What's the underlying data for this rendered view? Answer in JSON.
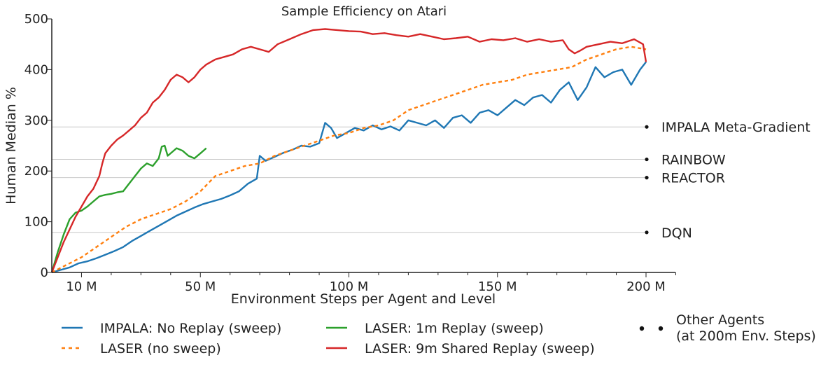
{
  "chart_data": {
    "type": "line",
    "title": "Sample Efficiency on Atari",
    "xlabel": "Environment Steps per Agent and Level",
    "ylabel": "Human Median %",
    "xlim": [
      0,
      213
    ],
    "ylim": [
      0,
      500
    ],
    "x_ticks": [
      10,
      50,
      100,
      150,
      200
    ],
    "x_tick_labels": [
      "10 M",
      "50 M",
      "100 M",
      "150 M",
      "200 M"
    ],
    "y_ticks": [
      0,
      100,
      200,
      300,
      400,
      500
    ],
    "y_tick_labels": [
      "0",
      "100",
      "200",
      "300",
      "400",
      "500"
    ],
    "reference_lines": [
      {
        "label": "IMPALA Meta-Gradient",
        "value": 287
      },
      {
        "label": "RAINBOW",
        "value": 223
      },
      {
        "label": "REACTOR",
        "value": 187
      },
      {
        "label": "DQN",
        "value": 79
      }
    ],
    "series": [
      {
        "name": "IMPALA: No Replay (sweep)",
        "color": "#1f77b4",
        "style": "solid",
        "x": [
          0,
          3,
          6,
          9,
          12,
          15,
          18,
          21,
          24,
          27,
          30,
          33,
          36,
          39,
          42,
          45,
          48,
          51,
          54,
          57,
          60,
          63,
          66,
          69,
          70,
          72,
          75,
          78,
          81,
          84,
          87,
          90,
          92,
          94,
          96,
          99,
          102,
          105,
          108,
          111,
          114,
          117,
          120,
          123,
          126,
          129,
          132,
          135,
          138,
          141,
          144,
          147,
          150,
          153,
          156,
          159,
          162,
          165,
          168,
          171,
          174,
          177,
          180,
          183,
          186,
          189,
          192,
          195,
          198,
          200
        ],
        "values": [
          0,
          5,
          10,
          18,
          22,
          28,
          35,
          42,
          50,
          62,
          72,
          82,
          92,
          102,
          112,
          120,
          128,
          135,
          140,
          145,
          152,
          160,
          175,
          185,
          230,
          220,
          228,
          236,
          242,
          250,
          248,
          255,
          295,
          285,
          265,
          275,
          285,
          280,
          290,
          282,
          288,
          280,
          300,
          295,
          290,
          300,
          285,
          305,
          310,
          295,
          315,
          320,
          310,
          325,
          340,
          330,
          345,
          350,
          335,
          360,
          375,
          340,
          365,
          405,
          385,
          395,
          400,
          370,
          400,
          415
        ]
      },
      {
        "name": "LASER (no sweep)",
        "color": "#ff7f0e",
        "style": "dotted",
        "x": [
          0,
          5,
          10,
          15,
          20,
          25,
          30,
          35,
          40,
          45,
          50,
          55,
          60,
          65,
          70,
          75,
          80,
          85,
          90,
          95,
          100,
          105,
          110,
          115,
          120,
          125,
          130,
          135,
          140,
          145,
          150,
          155,
          160,
          165,
          170,
          175,
          180,
          185,
          190,
          195,
          200
        ],
        "values": [
          0,
          15,
          30,
          50,
          70,
          90,
          105,
          115,
          125,
          140,
          160,
          190,
          200,
          210,
          215,
          230,
          240,
          250,
          260,
          270,
          275,
          285,
          290,
          300,
          320,
          330,
          340,
          350,
          360,
          370,
          375,
          380,
          390,
          395,
          400,
          405,
          420,
          430,
          440,
          445,
          440
        ]
      },
      {
        "name": "LASER: 1m Replay (sweep)",
        "color": "#2ca02c",
        "style": "solid",
        "x": [
          0,
          2,
          4,
          6,
          8,
          10,
          12,
          14,
          16,
          18,
          20,
          22,
          24,
          26,
          28,
          30,
          32,
          34,
          36,
          37,
          38,
          39,
          40,
          42,
          44,
          46,
          48,
          50,
          52
        ],
        "values": [
          0,
          40,
          75,
          105,
          118,
          122,
          130,
          140,
          150,
          153,
          155,
          158,
          160,
          175,
          190,
          205,
          215,
          210,
          225,
          248,
          250,
          230,
          235,
          245,
          240,
          230,
          225,
          235,
          245
        ]
      },
      {
        "name": "LASER: 9m Shared Replay (sweep)",
        "color": "#d62728",
        "style": "solid",
        "x": [
          0,
          2,
          4,
          6,
          8,
          10,
          12,
          14,
          16,
          17,
          18,
          20,
          22,
          24,
          26,
          28,
          30,
          32,
          34,
          36,
          38,
          40,
          42,
          44,
          46,
          48,
          50,
          52,
          55,
          58,
          61,
          64,
          67,
          70,
          73,
          76,
          80,
          84,
          88,
          92,
          96,
          100,
          104,
          108,
          112,
          116,
          120,
          124,
          128,
          132,
          136,
          140,
          144,
          148,
          152,
          156,
          160,
          164,
          168,
          172,
          174,
          176,
          178,
          180,
          184,
          188,
          192,
          196,
          199,
          200
        ],
        "values": [
          0,
          30,
          60,
          85,
          110,
          130,
          150,
          165,
          190,
          215,
          235,
          250,
          262,
          270,
          280,
          290,
          305,
          315,
          335,
          345,
          360,
          380,
          390,
          385,
          375,
          385,
          400,
          410,
          420,
          425,
          430,
          440,
          445,
          440,
          435,
          450,
          460,
          470,
          478,
          480,
          478,
          476,
          475,
          470,
          472,
          468,
          465,
          470,
          465,
          460,
          462,
          465,
          455,
          460,
          458,
          462,
          455,
          460,
          455,
          458,
          440,
          432,
          438,
          445,
          450,
          455,
          452,
          460,
          450,
          415
        ]
      }
    ],
    "other_agents_label": "Other Agents",
    "other_agents_sublabel": "(at 200m Env. Steps)"
  }
}
